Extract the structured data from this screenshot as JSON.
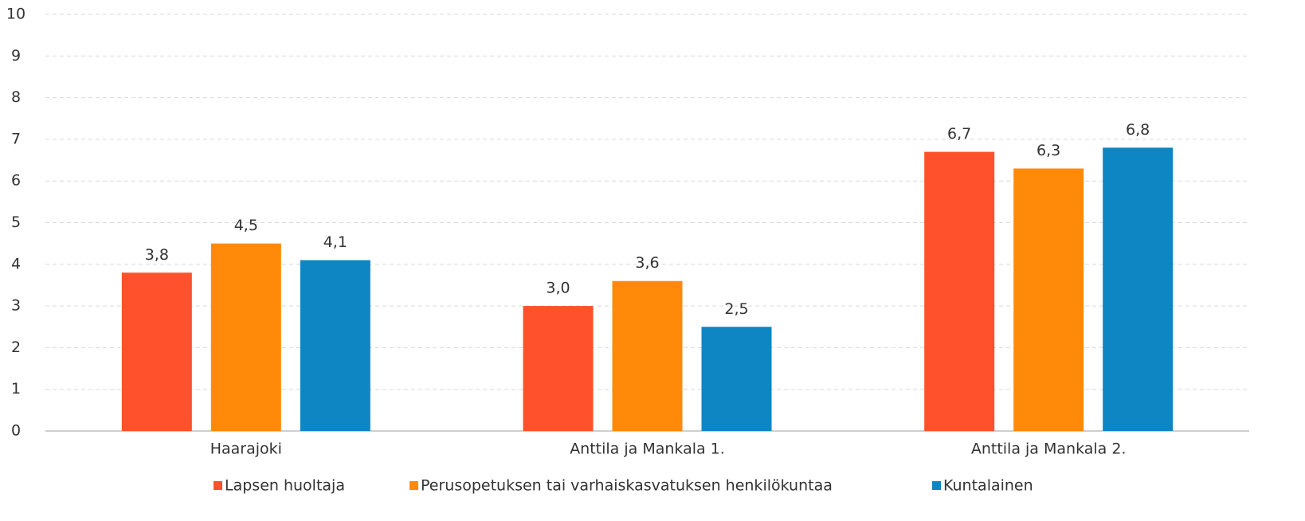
{
  "chart_data": {
    "type": "bar",
    "categories": [
      "Haarajoki",
      "Anttila ja Mankala 1.",
      "Anttila ja Mankala 2."
    ],
    "series": [
      {
        "name": "Lapsen huoltaja",
        "color": "#ff512b",
        "values": [
          3.8,
          3.0,
          6.7
        ],
        "value_labels": [
          "3,8",
          "3,0",
          "6,7"
        ]
      },
      {
        "name": "Perusopetuksen tai varhaiskasvatuksen henkilökuntaa",
        "color": "#ff8a0a",
        "values": [
          4.5,
          3.6,
          6.3
        ],
        "value_labels": [
          "4,5",
          "3,6",
          "6,3"
        ]
      },
      {
        "name": "Kuntalainen",
        "color": "#0f86c4",
        "values": [
          4.1,
          2.5,
          6.8
        ],
        "value_labels": [
          "4,1",
          "2,5",
          "6,8"
        ]
      }
    ],
    "ylim": [
      0,
      10
    ],
    "yticks": [
      0,
      1,
      2,
      3,
      4,
      5,
      6,
      7,
      8,
      9,
      10
    ],
    "grid": true,
    "legend": "bottom"
  }
}
